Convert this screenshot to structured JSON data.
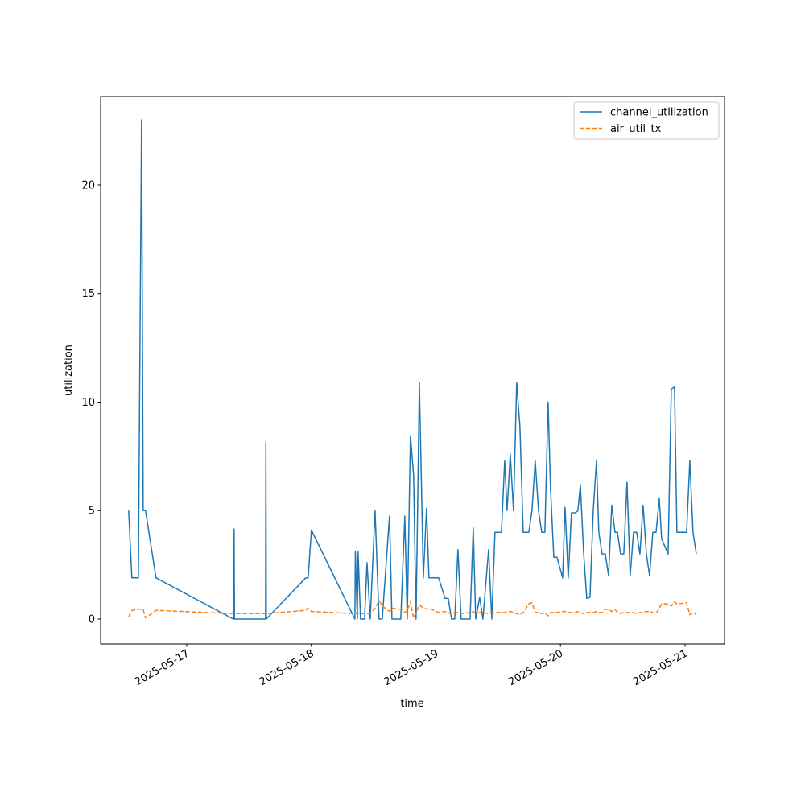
{
  "chart_data": {
    "type": "line",
    "x_label": "time",
    "y_label": "utilization",
    "x": [
      "2025-05-16T12:49",
      "2025-05-16T13:26",
      "2025-05-16T14:41",
      "2025-05-16T15:18",
      "2025-05-16T15:37",
      "2025-05-16T16:04",
      "2025-05-16T18:05",
      "2025-05-17T08:59",
      "2025-05-17T09:08",
      "2025-05-17T09:12",
      "2025-05-17T15:11",
      "2025-05-17T15:15",
      "2025-05-17T15:20",
      "2025-05-17T22:56",
      "2025-05-17T23:24",
      "2025-05-18T00:01",
      "2025-05-18T08:24",
      "2025-05-18T08:29",
      "2025-05-18T08:52",
      "2025-05-18T09:01",
      "2025-05-18T09:29",
      "2025-05-18T10:16",
      "2025-05-18T10:44",
      "2025-05-18T11:21",
      "2025-05-18T12:17",
      "2025-05-18T13:03",
      "2025-05-18T13:40",
      "2025-05-18T15:04",
      "2025-05-18T15:32",
      "2025-05-18T17:14",
      "2025-05-18T18:01",
      "2025-05-18T18:29",
      "2025-05-18T19:06",
      "2025-05-18T19:43",
      "2025-05-18T20:11",
      "2025-05-18T20:49",
      "2025-05-18T21:35",
      "2025-05-18T22:12",
      "2025-05-18T22:40",
      "2025-05-19T00:32",
      "2025-05-19T01:46",
      "2025-05-19T02:23",
      "2025-05-19T03:01",
      "2025-05-19T03:38",
      "2025-05-19T04:15",
      "2025-05-19T04:52",
      "2025-05-19T06:35",
      "2025-05-19T07:12",
      "2025-05-19T07:40",
      "2025-05-19T08:26",
      "2025-05-19T09:04",
      "2025-05-19T10:09",
      "2025-05-19T10:46",
      "2025-05-19T11:23",
      "2025-05-19T12:38",
      "2025-05-19T13:15",
      "2025-05-19T13:43",
      "2025-05-19T14:20",
      "2025-05-19T14:57",
      "2025-05-19T15:34",
      "2025-05-19T16:11",
      "2025-05-19T16:49",
      "2025-05-19T17:54",
      "2025-05-19T18:31",
      "2025-05-19T19:08",
      "2025-05-19T19:46",
      "2025-05-19T20:23",
      "2025-05-19T21:00",
      "2025-05-19T21:37",
      "2025-05-19T22:05",
      "2025-05-19T22:43",
      "2025-05-19T23:20",
      "2025-05-20T00:25",
      "2025-05-20T00:53",
      "2025-05-20T01:30",
      "2025-05-20T02:07",
      "2025-05-20T02:54",
      "2025-05-20T03:22",
      "2025-05-20T03:50",
      "2025-05-20T04:27",
      "2025-05-20T05:04",
      "2025-05-20T05:41",
      "2025-05-20T06:19",
      "2025-05-20T06:56",
      "2025-05-20T07:23",
      "2025-05-20T08:01",
      "2025-05-20T08:38",
      "2025-05-20T09:16",
      "2025-05-20T09:53",
      "2025-05-20T10:30",
      "2025-05-20T10:58",
      "2025-05-20T11:35",
      "2025-05-20T12:12",
      "2025-05-20T12:49",
      "2025-05-20T13:26",
      "2025-05-20T14:04",
      "2025-05-20T14:41",
      "2025-05-20T15:18",
      "2025-05-20T15:55",
      "2025-05-20T16:33",
      "2025-05-20T17:10",
      "2025-05-20T17:47",
      "2025-05-20T18:25",
      "2025-05-20T19:02",
      "2025-05-20T19:29",
      "2025-05-20T20:44",
      "2025-05-20T21:21",
      "2025-05-20T21:58",
      "2025-05-20T22:26",
      "2025-05-21T00:18",
      "2025-05-21T00:55",
      "2025-05-21T01:32",
      "2025-05-21T02:10"
    ],
    "series": [
      {
        "name": "channel_utilization",
        "color": "#1f77b4",
        "dash": "solid",
        "values": [
          5.0,
          1.9,
          1.9,
          23.0,
          5.0,
          5.0,
          1.9,
          0,
          4.15,
          0,
          0,
          8.15,
          0,
          1.9,
          1.9,
          4.1,
          0,
          3.1,
          0,
          3.1,
          0,
          0,
          2.6,
          0,
          5.0,
          0,
          0,
          4.75,
          0,
          0,
          4.75,
          0,
          8.45,
          6.6,
          0,
          10.9,
          1.9,
          5.1,
          1.9,
          1.9,
          0.95,
          0.95,
          0,
          0,
          3.2,
          0,
          0,
          4.2,
          0,
          1.0,
          0,
          3.2,
          0,
          4.0,
          4.0,
          7.3,
          5.0,
          7.6,
          5.0,
          10.9,
          8.9,
          4.0,
          4.0,
          5.0,
          7.3,
          5.0,
          4.0,
          4.0,
          10.0,
          6.0,
          2.85,
          2.85,
          1.9,
          5.15,
          1.9,
          4.9,
          4.9,
          5.0,
          6.2,
          3.1,
          0.95,
          1.0,
          5.0,
          7.3,
          4.0,
          3.0,
          3.0,
          2.0,
          5.25,
          4.0,
          4.0,
          3.0,
          3.0,
          6.3,
          2.0,
          4.0,
          4.0,
          3.0,
          5.25,
          3.0,
          2.0,
          4.0,
          4.0,
          5.55,
          3.7,
          3.0,
          10.6,
          10.7,
          4.0,
          4.0,
          7.3,
          4.0,
          3.0
        ]
      },
      {
        "name": "air_util_tx",
        "color": "#ff7f0e",
        "dash": "dashed",
        "values": [
          0.1,
          0.4,
          0.45,
          0.45,
          0.45,
          0.05,
          0.4,
          0.25,
          0.25,
          0.25,
          0.25,
          0.25,
          0.25,
          0.4,
          0.5,
          0.35,
          0.25,
          0.25,
          0.25,
          0.25,
          0.25,
          0.25,
          0.25,
          0.25,
          0.5,
          0.85,
          0.6,
          0.35,
          0.5,
          0.45,
          0.3,
          0.4,
          0.8,
          0.05,
          0.3,
          0.65,
          0.5,
          0.45,
          0.5,
          0.3,
          0.35,
          0.3,
          0.2,
          0.3,
          0.3,
          0.25,
          0.3,
          0.35,
          0.25,
          0.3,
          0.3,
          0.25,
          0.3,
          0.3,
          0.3,
          0.3,
          0.35,
          0.35,
          0.3,
          0.25,
          0.2,
          0.3,
          0.7,
          0.75,
          0.3,
          0.3,
          0.25,
          0.3,
          0.15,
          0.3,
          0.3,
          0.3,
          0.35,
          0.35,
          0.3,
          0.3,
          0.3,
          0.35,
          0.3,
          0.25,
          0.3,
          0.3,
          0.3,
          0.35,
          0.3,
          0.3,
          0.45,
          0.45,
          0.35,
          0.45,
          0.3,
          0.25,
          0.3,
          0.3,
          0.3,
          0.3,
          0.25,
          0.3,
          0.3,
          0.35,
          0.35,
          0.3,
          0.25,
          0.5,
          0.7,
          0.7,
          0.6,
          0.8,
          0.7,
          0.75,
          0.2,
          0.3,
          0.2
        ]
      }
    ],
    "xlim": [
      "2025-05-16T07:25",
      "2025-05-21T07:36"
    ],
    "xticks": [
      "2025-05-17",
      "2025-05-18",
      "2025-05-19",
      "2025-05-20",
      "2025-05-21"
    ],
    "ylim": [
      -1.15,
      24.08
    ],
    "yticks": [
      0,
      5,
      10,
      15,
      20
    ],
    "grid": false,
    "legend": "upper right"
  }
}
